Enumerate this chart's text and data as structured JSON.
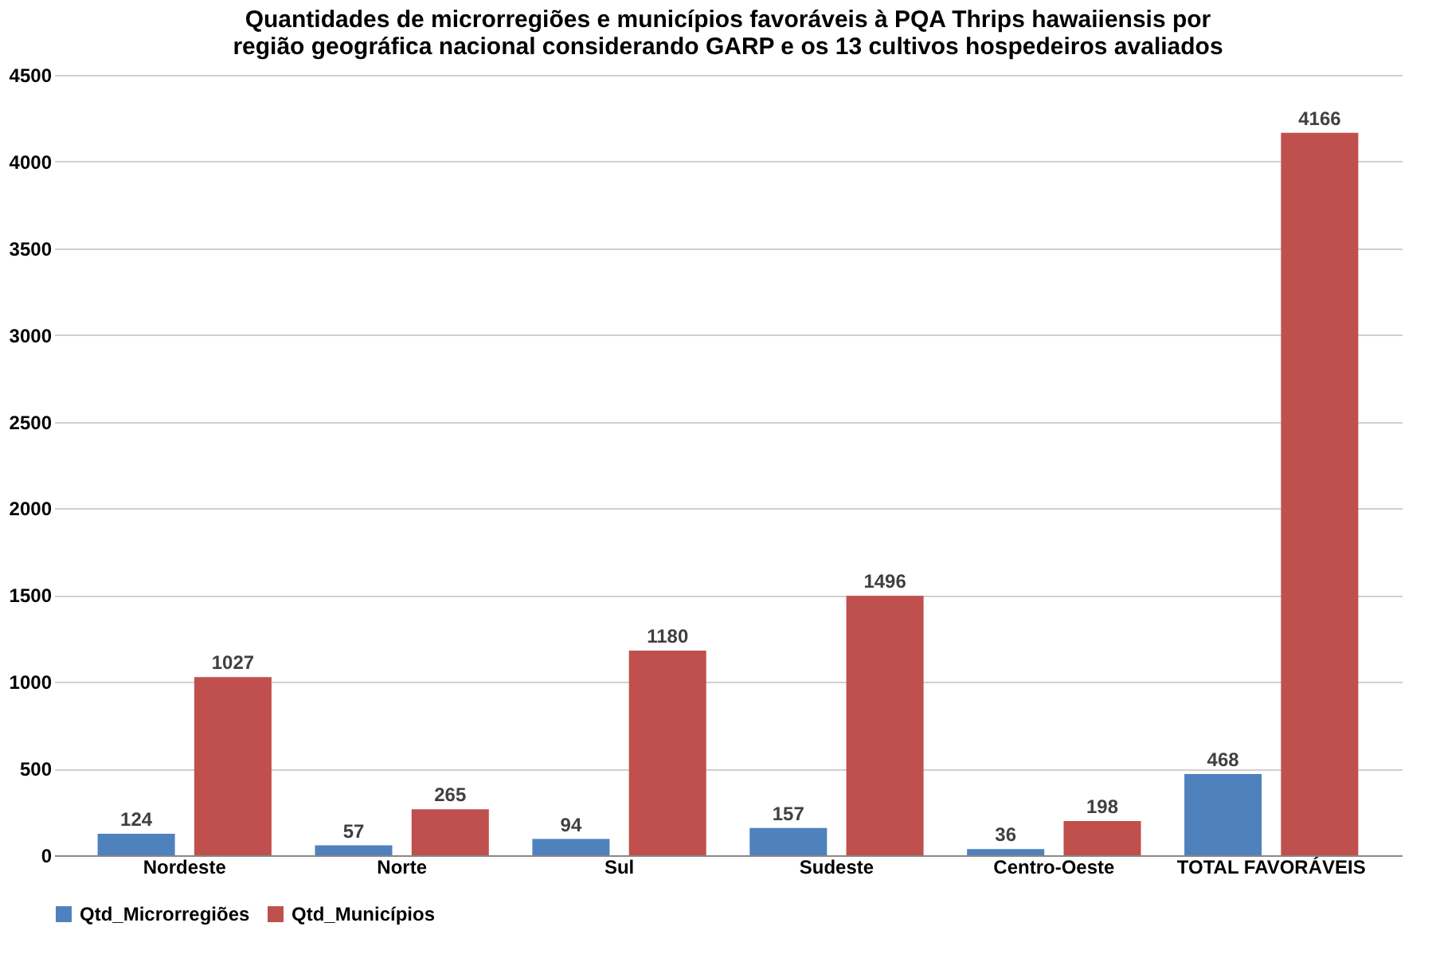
{
  "chart_data": {
    "type": "bar",
    "title": "Quantidades de microrregiões e municípios favoráveis à PQA  Thrips hawaiiensis  por região geográfica nacional considerando GARP e os 13 cultivos hospedeiros avaliados",
    "categories": [
      "Nordeste",
      "Norte",
      "Sul",
      "Sudeste",
      "Centro-Oeste",
      "TOTAL FAVORÁVEIS"
    ],
    "series": [
      {
        "name": "Qtd_Microrregiões",
        "color": "#4f81bd",
        "values": [
          124,
          57,
          94,
          157,
          36,
          468
        ]
      },
      {
        "name": "Qtd_Municípios",
        "color": "#c0504d",
        "values": [
          1027,
          265,
          1180,
          1496,
          198,
          4166
        ]
      }
    ],
    "ylim": [
      0,
      4500
    ],
    "yticks": [
      0,
      500,
      1000,
      1500,
      2000,
      2500,
      3000,
      3500,
      4000,
      4500
    ],
    "grid": "y",
    "legend": "bottom",
    "data_labels": true
  }
}
